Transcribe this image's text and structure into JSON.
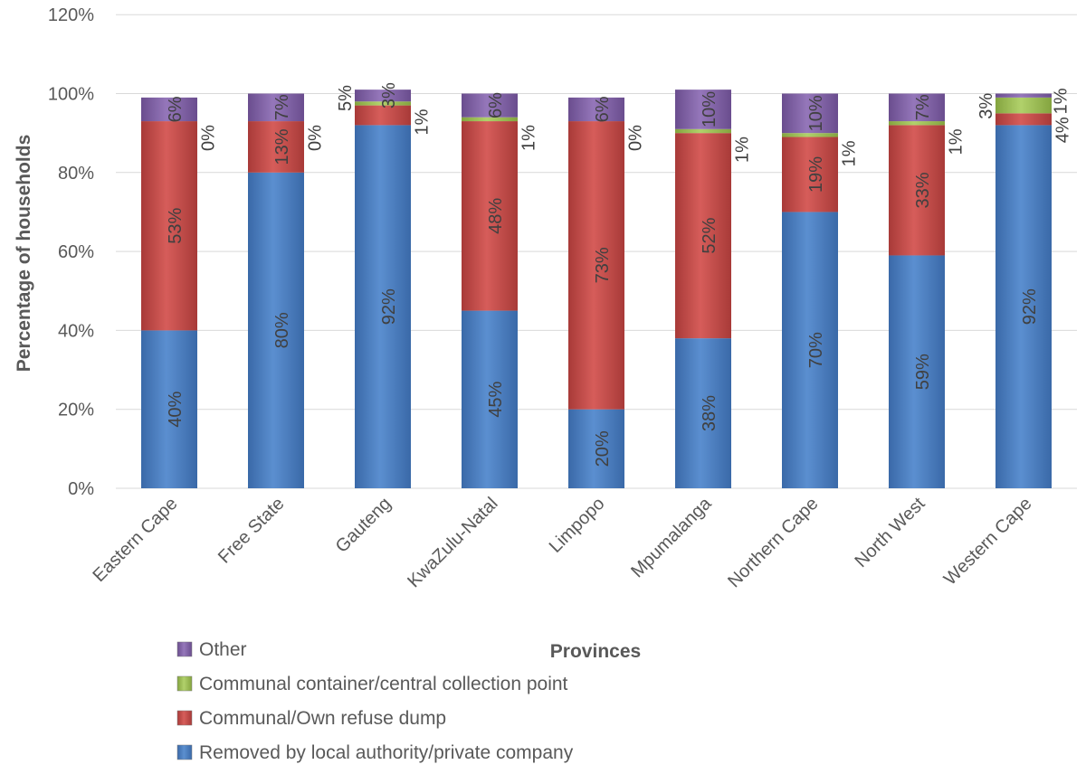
{
  "chart_data": {
    "type": "bar",
    "stacked": true,
    "title": "",
    "xlabel": "Provinces",
    "ylabel": "Percentage of households",
    "ylim": [
      0,
      120
    ],
    "y_tick_labels": [
      "0%",
      "20%",
      "40%",
      "60%",
      "80%",
      "100%",
      "120%"
    ],
    "grid": true,
    "legend_position": "bottom-left",
    "categories": [
      "Eastern Cape",
      "Free State",
      "Gauteng",
      "KwaZulu-Natal",
      "Limpopo",
      "Mpumalanga",
      "Northern Cape",
      "North West",
      "Western Cape"
    ],
    "series": [
      {
        "name": "Removed by local authority/private company",
        "color": "#4a7ebb",
        "values": [
          40,
          80,
          92,
          45,
          20,
          38,
          70,
          59,
          92
        ],
        "labels": [
          "40%",
          "80%",
          "92%",
          "45%",
          "20%",
          "38%",
          "70%",
          "59%",
          "92%"
        ]
      },
      {
        "name": "Communal/Own refuse dump",
        "color": "#be4b48",
        "values": [
          53,
          13,
          5,
          48,
          73,
          52,
          19,
          33,
          3
        ],
        "labels": [
          "53%",
          "13%",
          "5%",
          "48%",
          "73%",
          "52%",
          "19%",
          "33%",
          "3%"
        ]
      },
      {
        "name": "Communal container/central collection point",
        "color": "#98b954",
        "values": [
          0,
          0,
          1,
          1,
          0,
          1,
          1,
          1,
          4
        ],
        "labels": [
          "0%",
          "0%",
          "1%",
          "1%",
          "0%",
          "1%",
          "1%",
          "1%",
          "4%"
        ]
      },
      {
        "name": "Other",
        "color": "#7d60a0",
        "values": [
          6,
          7,
          3,
          6,
          6,
          10,
          10,
          7,
          1
        ],
        "labels": [
          "6%",
          "7%",
          "3%",
          "6%",
          "6%",
          "10%",
          "10%",
          "7%",
          "1%"
        ]
      }
    ],
    "legend_order": [
      "Other",
      "Communal container/central collection point",
      "Communal/Own refuse dump",
      "Removed by local authority/private company"
    ]
  }
}
